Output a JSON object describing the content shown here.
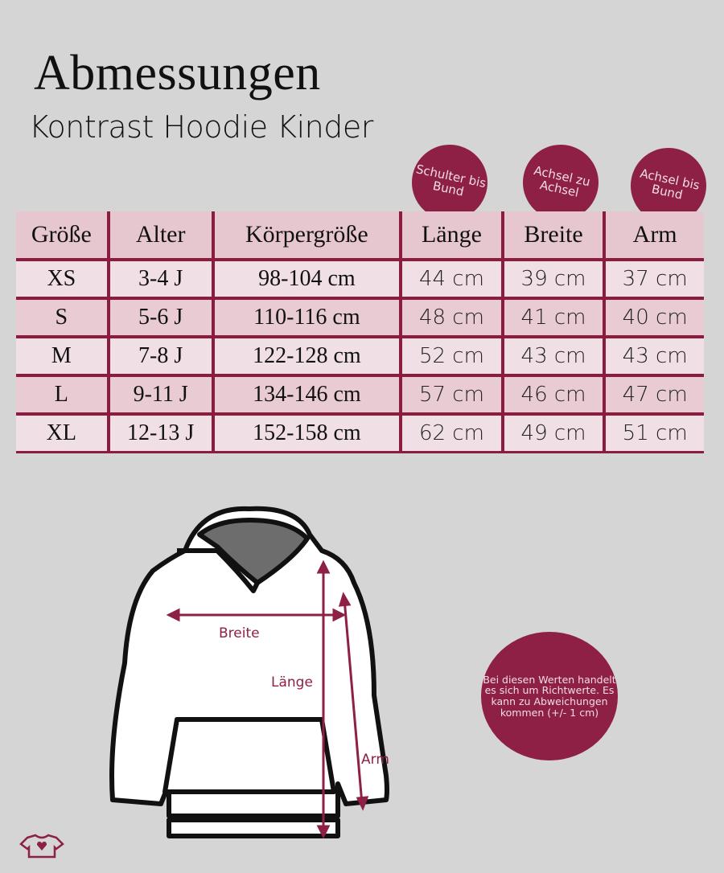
{
  "header": {
    "title": "Abmessungen",
    "subtitle": "Kontrast Hoodie Kinder"
  },
  "badges": [
    {
      "text": "Schulter bis Bund",
      "column": "Länge"
    },
    {
      "text": "Achsel zu Achsel",
      "column": "Breite"
    },
    {
      "text": "Achsel bis Bund",
      "column": "Arm"
    }
  ],
  "table": {
    "headers": [
      "Größe",
      "Alter",
      "Körpergröße",
      "Länge",
      "Breite",
      "Arm"
    ],
    "rows": [
      [
        "XS",
        "3-4 J",
        "98-104 cm",
        "44 cm",
        "39 cm",
        "37 cm"
      ],
      [
        "S",
        "5-6 J",
        "110-116 cm",
        "48 cm",
        "41 cm",
        "40 cm"
      ],
      [
        "M",
        "7-8 J",
        "122-128 cm",
        "52 cm",
        "43 cm",
        "43 cm"
      ],
      [
        "L",
        "9-11 J",
        "134-146 cm",
        "57 cm",
        "46 cm",
        "47 cm"
      ],
      [
        "XL",
        "12-13 J",
        "152-158 cm",
        "62 cm",
        "49 cm",
        "51 cm"
      ]
    ]
  },
  "diagram": {
    "labels": {
      "breite": "Breite",
      "laenge": "Länge",
      "arm": "Arm"
    }
  },
  "note": "Bei diesen Werten handelt es sich um Richtwerte. Es kann zu Abweichungen kommen (+/- 1 cm)",
  "colors": {
    "accent": "#8e1f45",
    "background": "#d5d5d5",
    "header_row": "#e6c6cf",
    "row_light": "#f0dfe4",
    "row_dark": "#e8cbd3"
  }
}
